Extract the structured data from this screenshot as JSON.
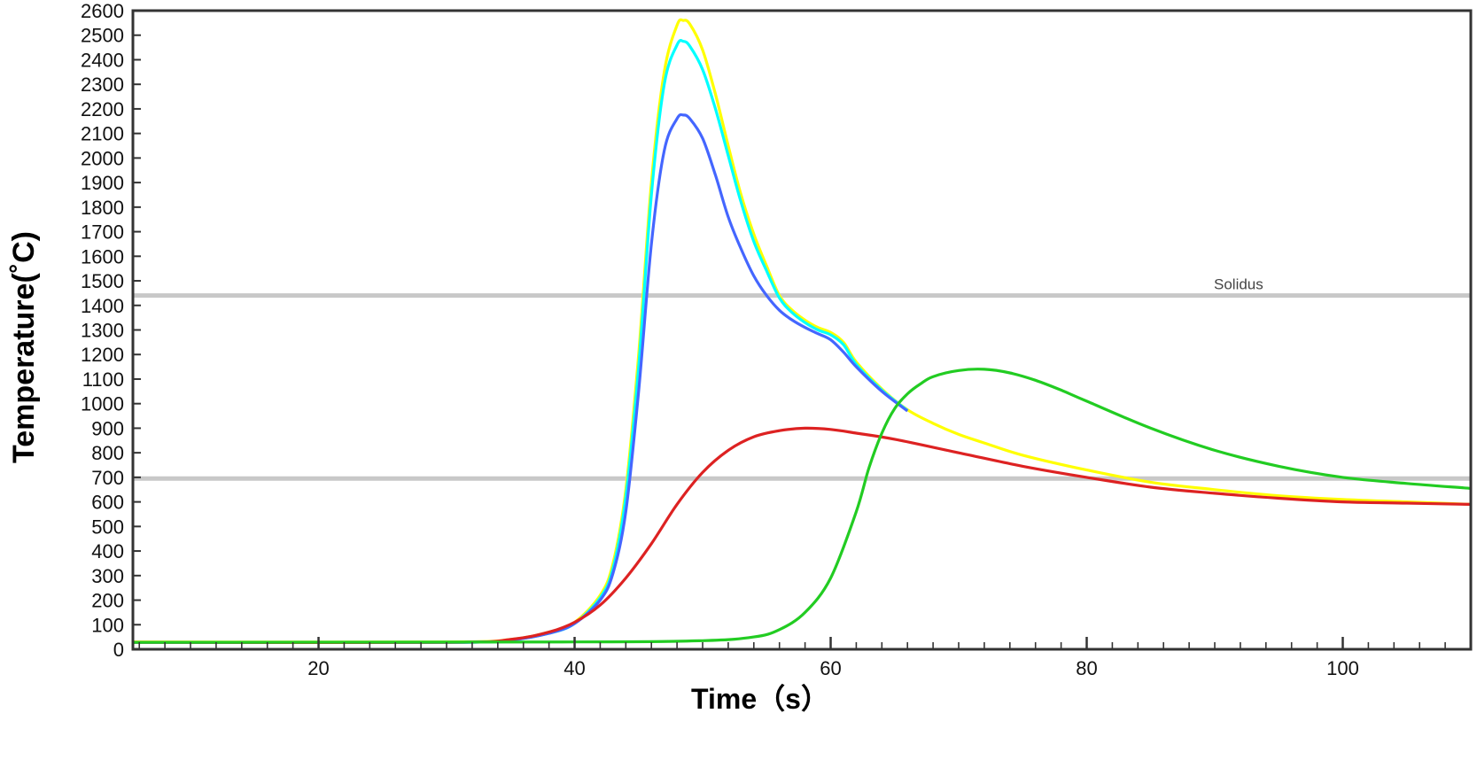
{
  "chart_data": {
    "type": "line",
    "title": "",
    "xlabel": "Time（s）",
    "ylabel": "Temperature(˚C)",
    "xlim": [
      5.5,
      110
    ],
    "ylim": [
      0,
      2600
    ],
    "x_ticks": [
      20,
      40,
      60,
      80,
      100
    ],
    "x_minor_step": 2,
    "y_ticks": [
      0,
      100,
      200,
      300,
      400,
      500,
      600,
      700,
      800,
      900,
      1000,
      1100,
      1200,
      1300,
      1400,
      1500,
      1600,
      1700,
      1800,
      1900,
      2000,
      2100,
      2200,
      2300,
      2400,
      2500,
      2600
    ],
    "grid": false,
    "legend": "none",
    "reference_lines": [
      {
        "y": 1440,
        "label": "Solidus",
        "color": "#c8c8c8"
      },
      {
        "y": 695,
        "label": "",
        "color": "#c8c8c8"
      }
    ],
    "series": [
      {
        "color": "#ffff00",
        "x": [
          5.5,
          30,
          35,
          38,
          40,
          42,
          43,
          44,
          45,
          46,
          47,
          48,
          48.5,
          49,
          50,
          51,
          52,
          53,
          54,
          55,
          56,
          57,
          58,
          59,
          60,
          61,
          62,
          64,
          66,
          68,
          70,
          72,
          75,
          80,
          85,
          90,
          95,
          100,
          105,
          110
        ],
        "y": [
          30,
          30,
          40,
          70,
          110,
          220,
          350,
          650,
          1200,
          1900,
          2350,
          2540,
          2560,
          2545,
          2440,
          2260,
          2050,
          1850,
          1690,
          1560,
          1440,
          1380,
          1340,
          1310,
          1290,
          1250,
          1170,
          1060,
          975,
          920,
          875,
          840,
          790,
          730,
          680,
          650,
          625,
          610,
          600,
          590
        ]
      },
      {
        "color": "#00ffff",
        "x": [
          5.5,
          30,
          35,
          38,
          40,
          42,
          43,
          44,
          45,
          46,
          47,
          48,
          48.5,
          49,
          50,
          51,
          52,
          53,
          54,
          55,
          56,
          57,
          58,
          59,
          60,
          61,
          62,
          64,
          66
        ],
        "y": [
          28,
          28,
          38,
          65,
          105,
          210,
          330,
          620,
          1150,
          1850,
          2300,
          2460,
          2475,
          2455,
          2360,
          2200,
          2010,
          1820,
          1660,
          1540,
          1430,
          1370,
          1330,
          1300,
          1280,
          1240,
          1160,
          1055,
          972
        ]
      },
      {
        "color": "#4466ff",
        "x": [
          5.5,
          30,
          35,
          38,
          40,
          42,
          43,
          44,
          45,
          46,
          47,
          48,
          48.5,
          49,
          50,
          51,
          52,
          53,
          54,
          55,
          56,
          57,
          58,
          59,
          60,
          61,
          62,
          64,
          66
        ],
        "y": [
          28,
          28,
          38,
          65,
          105,
          200,
          310,
          560,
          1050,
          1650,
          2030,
          2160,
          2175,
          2160,
          2080,
          1930,
          1760,
          1630,
          1520,
          1440,
          1380,
          1340,
          1310,
          1285,
          1260,
          1210,
          1150,
          1050,
          970
        ]
      },
      {
        "color": "#dd2222",
        "x": [
          5.5,
          30,
          35,
          38,
          40,
          42,
          44,
          46,
          48,
          50,
          52,
          54,
          56,
          58,
          60,
          62,
          65,
          70,
          75,
          80,
          85,
          90,
          95,
          100,
          105,
          110
        ],
        "y": [
          28,
          28,
          40,
          70,
          110,
          180,
          290,
          430,
          590,
          720,
          810,
          865,
          890,
          900,
          895,
          880,
          855,
          800,
          745,
          700,
          660,
          635,
          615,
          600,
          595,
          590
        ]
      },
      {
        "color": "#22cc22",
        "x": [
          5.5,
          40,
          50,
          54,
          56,
          58,
          60,
          62,
          63,
          64,
          65,
          66,
          67,
          68,
          70,
          72,
          74,
          76,
          78,
          80,
          85,
          90,
          95,
          100,
          105,
          110
        ],
        "y": [
          28,
          30,
          35,
          50,
          80,
          150,
          290,
          560,
          740,
          880,
          980,
          1040,
          1080,
          1110,
          1135,
          1140,
          1125,
          1095,
          1055,
          1010,
          900,
          810,
          745,
          700,
          675,
          655
        ]
      }
    ]
  }
}
